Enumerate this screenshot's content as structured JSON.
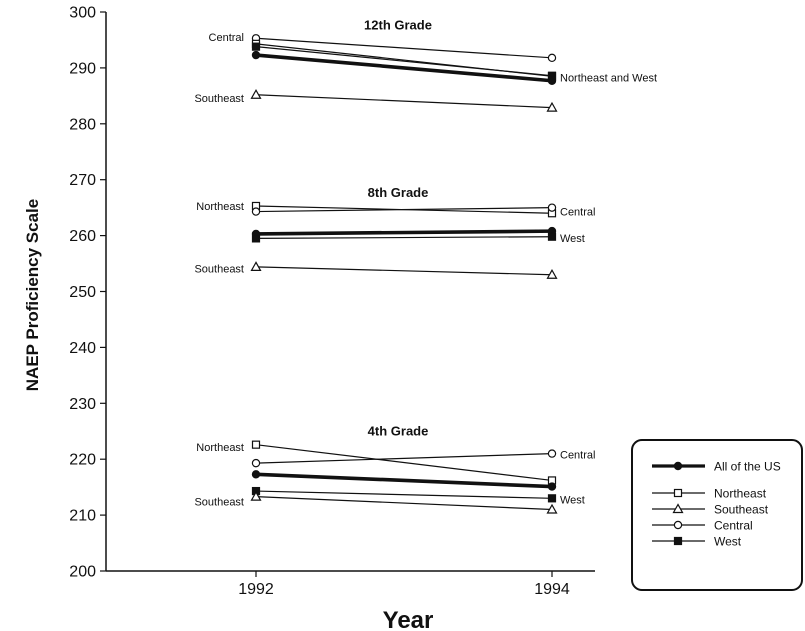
{
  "chart_data": {
    "type": "line",
    "xlabel": "Year",
    "ylabel": "NAEP Proficiency Scale",
    "x": [
      "1992",
      "1994"
    ],
    "ylim": [
      200,
      300
    ],
    "yticks": [
      "200",
      "210",
      "220",
      "230",
      "240",
      "250",
      "260",
      "270",
      "280",
      "290",
      "300"
    ],
    "grid": false,
    "legend_position": "bottom-right",
    "legend": [
      {
        "name": "All of the US",
        "marker": "filled-circle",
        "thick": true
      },
      {
        "name": "Northeast",
        "marker": "square"
      },
      {
        "name": "Southeast",
        "marker": "triangle"
      },
      {
        "name": "Central",
        "marker": "circle"
      },
      {
        "name": "West",
        "marker": "filled-square"
      }
    ],
    "groups": [
      {
        "title": "12th Grade",
        "series": [
          {
            "name": "Central",
            "marker": "circle",
            "values": [
              295.3,
              291.8
            ]
          },
          {
            "name": "Northeast",
            "marker": "square",
            "values": [
              294.3,
              288.5
            ]
          },
          {
            "name": "West",
            "marker": "filled-square",
            "values": [
              293.8,
              288.6
            ]
          },
          {
            "name": "All of the US",
            "marker": "filled-circle",
            "thick": true,
            "values": [
              292.3,
              287.7
            ]
          },
          {
            "name": "Southeast",
            "marker": "triangle",
            "values": [
              285.2,
              282.9
            ]
          }
        ]
      },
      {
        "title": "8th Grade",
        "series": [
          {
            "name": "Northeast",
            "marker": "square",
            "values": [
              265.3,
              264.0
            ]
          },
          {
            "name": "Central",
            "marker": "circle",
            "values": [
              264.3,
              265.0
            ]
          },
          {
            "name": "All of the US",
            "marker": "filled-circle",
            "thick": true,
            "values": [
              260.3,
              260.8
            ]
          },
          {
            "name": "West",
            "marker": "filled-square",
            "values": [
              259.5,
              259.8
            ]
          },
          {
            "name": "Southeast",
            "marker": "triangle",
            "values": [
              254.4,
              253.0
            ]
          }
        ]
      },
      {
        "title": "4th Grade",
        "series": [
          {
            "name": "Northeast",
            "marker": "square",
            "values": [
              222.6,
              216.2
            ]
          },
          {
            "name": "Central",
            "marker": "circle",
            "values": [
              219.3,
              221.0
            ]
          },
          {
            "name": "All of the US",
            "marker": "filled-circle",
            "thick": true,
            "values": [
              217.3,
              215.1
            ]
          },
          {
            "name": "West",
            "marker": "filled-square",
            "values": [
              214.3,
              213.0
            ]
          },
          {
            "name": "Southeast",
            "marker": "triangle",
            "values": [
              213.3,
              211.0
            ]
          }
        ]
      }
    ],
    "annotations": [
      {
        "text": "Central",
        "x": "1992",
        "y": 295.5,
        "side": "left"
      },
      {
        "text": "Southeast",
        "x": "1992",
        "y": 284.6,
        "side": "left"
      },
      {
        "text": "Northeast and West",
        "x": "1994",
        "y": 288.3,
        "side": "right"
      },
      {
        "text": "Northeast",
        "x": "1992",
        "y": 265.3,
        "side": "left"
      },
      {
        "text": "Southeast",
        "x": "1992",
        "y": 254.1,
        "side": "left"
      },
      {
        "text": "Central",
        "x": "1994",
        "y": 264.3,
        "side": "right"
      },
      {
        "text": "West",
        "x": "1994",
        "y": 259.6,
        "side": "right"
      },
      {
        "text": "Northeast",
        "x": "1992",
        "y": 222.2,
        "side": "left"
      },
      {
        "text": "Southeast",
        "x": "1992",
        "y": 212.4,
        "side": "left"
      },
      {
        "text": "Central",
        "x": "1994",
        "y": 220.8,
        "side": "right"
      },
      {
        "text": "West",
        "x": "1994",
        "y": 212.8,
        "side": "right"
      }
    ]
  }
}
